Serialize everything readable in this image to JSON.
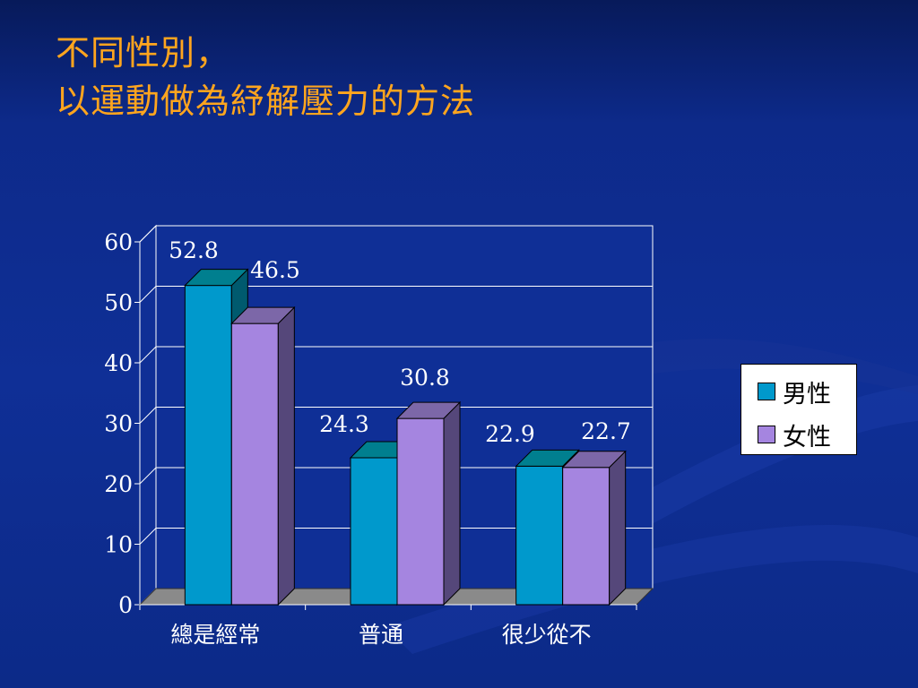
{
  "title": {
    "line1": "不同性別，",
    "line2": "以運動做為紓解壓力的方法"
  },
  "chart_data": {
    "type": "bar",
    "style": "3d-clustered",
    "categories": [
      "總是經常",
      "普通",
      "很少從不"
    ],
    "series": [
      {
        "name": "男性",
        "values": [
          52.8,
          24.3,
          22.9
        ],
        "color": "#0099cc"
      },
      {
        "name": "女性",
        "values": [
          46.5,
          30.8,
          22.7
        ],
        "color": "#a585e0"
      }
    ],
    "ylim": [
      0,
      60
    ],
    "yticks": [
      0,
      10,
      20,
      30,
      40,
      50,
      60
    ],
    "grid": true,
    "legend": "right",
    "title": "",
    "xlabel": "",
    "ylabel": ""
  },
  "colors": {
    "title": "#ffa51e",
    "plot_bg": "#0f2f96",
    "grid": "#ffffff",
    "floor": "#8a8a8a",
    "male_side": "#005a6e",
    "male_top": "#007f8f",
    "female_side": "#55477a",
    "female_top": "#7c67a8"
  }
}
